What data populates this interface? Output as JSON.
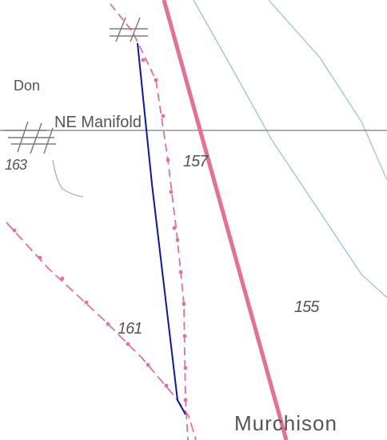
{
  "map": {
    "labels": {
      "place_don": "Don",
      "pipeline_ne_manifold": "NE Manifold",
      "block_163": "163",
      "block_157": "157",
      "block_161": "161",
      "block_155": "155",
      "place_murchison": "Murchison"
    },
    "colors": {
      "boundary_pink": "#e66f92",
      "route_blue": "#0a14b8",
      "pipeline_grey": "#7d7d7d",
      "bathymetry_blue": "#9cc4d8",
      "label_grey": "#555555"
    },
    "icons": [
      "structure-crosshatch-icon",
      "structure-crosshatch-icon"
    ]
  }
}
